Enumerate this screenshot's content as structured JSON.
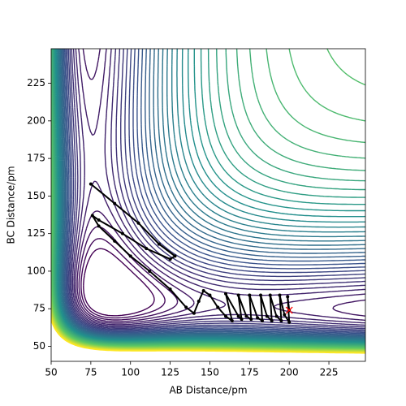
{
  "chart_data": {
    "type": "contour-trajectory",
    "x_label": "AB Distance/pm",
    "y_label": "BC Distance/pm",
    "xlim": [
      50,
      248
    ],
    "ylim": [
      40,
      248
    ],
    "xticks": [
      50,
      75,
      100,
      125,
      150,
      175,
      200,
      225
    ],
    "yticks": [
      50,
      75,
      100,
      125,
      150,
      175,
      200,
      225
    ],
    "series": [
      {
        "color": "#000000",
        "x": [
          75,
          90,
          105,
          118,
          128,
          125,
          110,
          95,
          80,
          76,
          80,
          90,
          100,
          112,
          125,
          135,
          140,
          143,
          146,
          150,
          155,
          160,
          164,
          160,
          168,
          170,
          168,
          173,
          176,
          175,
          180,
          183,
          182,
          186,
          189,
          188,
          192,
          195,
          194,
          197,
          200,
          199,
          200
        ],
        "y": [
          158,
          145,
          132,
          118,
          110,
          108,
          115,
          125,
          134,
          137,
          130,
          120,
          110,
          100,
          88,
          76,
          72,
          80,
          87,
          84,
          76,
          70,
          67,
          85,
          70,
          68,
          84,
          70,
          68,
          84,
          69,
          67,
          84,
          70,
          67,
          84,
          70,
          67,
          84,
          71,
          66,
          83,
          74
        ]
      }
    ],
    "marker": {
      "x": 200,
      "y": 74,
      "color": "#ff0000"
    }
  }
}
